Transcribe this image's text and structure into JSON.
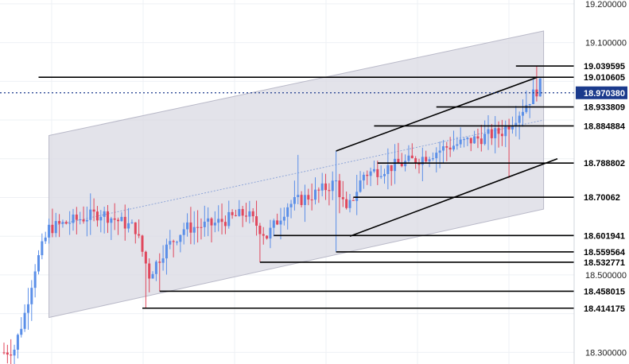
{
  "chart_data": {
    "type": "candlestick",
    "title": "",
    "xlabel": "",
    "ylabel": "",
    "ylim": [
      18.27,
      19.21
    ],
    "grid": true,
    "y_axis_position": "right",
    "y_ticks": [
      {
        "value": 19.2,
        "label": "19.200000"
      },
      {
        "value": 19.1,
        "label": "19.100000"
      },
      {
        "value": 18.5,
        "label": "18.500000"
      },
      {
        "value": 18.3,
        "label": "18.300000"
      }
    ],
    "current_price": {
      "value": 18.97038,
      "label": "18.970380",
      "color": "#1b3a8c"
    },
    "levels": [
      {
        "value": 19.039595,
        "label": "19.039595",
        "from_index": 148
      },
      {
        "value": 19.010605,
        "label": "19.010605",
        "from_index": 10
      },
      {
        "value": 18.933809,
        "label": "18.933809",
        "from_index": 125
      },
      {
        "value": 18.884884,
        "label": "18.884884",
        "from_index": 107
      },
      {
        "value": 18.788802,
        "label": "18.788802",
        "from_index": 108
      },
      {
        "value": 18.70062,
        "label": "18.70062",
        "from_index": 101
      },
      {
        "value": 18.601941,
        "label": "18.601941",
        "from_index": 78
      },
      {
        "value": 18.559564,
        "label": "18.559564",
        "from_index": 96
      },
      {
        "value": 18.532771,
        "label": "18.532771",
        "from_index": 74
      },
      {
        "value": 18.458015,
        "label": "18.458015",
        "from_index": 45
      },
      {
        "value": 18.414175,
        "label": "18.414175",
        "from_index": 40
      }
    ],
    "channel": {
      "upper_start": {
        "index": 13,
        "value": 18.86
      },
      "upper_end": {
        "index": 156,
        "value": 19.13
      },
      "lower_start": {
        "index": 13,
        "value": 18.39
      },
      "lower_end": {
        "index": 156,
        "value": 18.67
      },
      "mid_start": {
        "index": 13,
        "value": 18.625
      },
      "mid_end": {
        "index": 156,
        "value": 18.9
      },
      "fill": "#d9d9e3"
    },
    "trendlines": [
      {
        "start": {
          "index": 96,
          "value": 18.82
        },
        "end": {
          "index": 154,
          "value": 19.01
        }
      },
      {
        "start": {
          "index": 100,
          "value": 18.6
        },
        "end": {
          "index": 160,
          "value": 18.8
        }
      }
    ],
    "colors": {
      "up": "#5b8fe8",
      "down": "#e0475c"
    },
    "candles": []
  }
}
